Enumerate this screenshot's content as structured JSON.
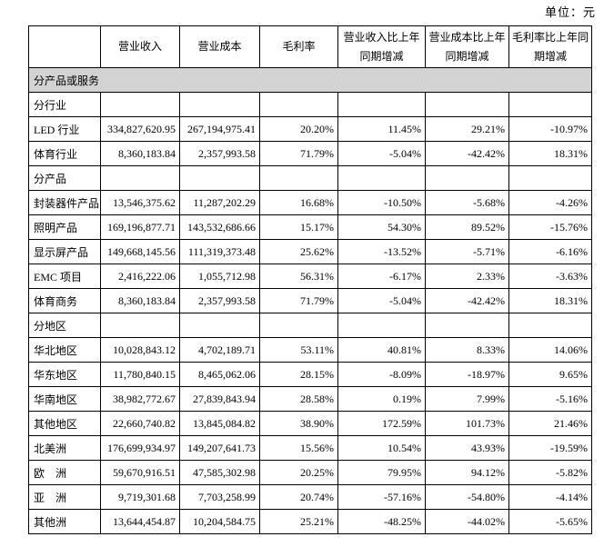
{
  "unit_label": "单位：元",
  "colors": {
    "section_row_bg": "#d3d3d3",
    "border": "#000000",
    "text": "#000000"
  },
  "table": {
    "columns": [
      "",
      "营业收入",
      "营业成本",
      "毛利率",
      "营业收入比上年同期增减",
      "营业成本比上年同期增减",
      "毛利率比上年同期增减"
    ],
    "rows": [
      {
        "type": "section_full",
        "label": "分产品或服务"
      },
      {
        "type": "section",
        "label": "分行业",
        "values": [
          "",
          "",
          "",
          "",
          "",
          ""
        ]
      },
      {
        "type": "data",
        "label": "LED 行业",
        "values": [
          "334,827,620.95",
          "267,194,975.41",
          "20.20%",
          "11.45%",
          "29.21%",
          "-10.97%"
        ]
      },
      {
        "type": "data",
        "label": "体育行业",
        "values": [
          "8,360,183.84",
          "2,357,993.58",
          "71.79%",
          "-5.04%",
          "-42.42%",
          "18.31%"
        ]
      },
      {
        "type": "section",
        "label": "分产品",
        "values": [
          "",
          "",
          "",
          "",
          "",
          ""
        ]
      },
      {
        "type": "data",
        "label": "封装器件产品",
        "values": [
          "13,546,375.62",
          "11,287,202.29",
          "16.68%",
          "-10.50%",
          "-5.68%",
          "-4.26%"
        ]
      },
      {
        "type": "data",
        "label": "照明产品",
        "values": [
          "169,196,877.71",
          "143,532,686.66",
          "15.17%",
          "54.30%",
          "89.52%",
          "-15.76%"
        ]
      },
      {
        "type": "data",
        "label": "显示屏产品",
        "values": [
          "149,668,145.56",
          "111,319,373.48",
          "25.62%",
          "-13.52%",
          "-5.71%",
          "-6.16%"
        ]
      },
      {
        "type": "data",
        "label": "EMC 项目",
        "values": [
          "2,416,222.06",
          "1,055,712.98",
          "56.31%",
          "-6.17%",
          "2.33%",
          "-3.63%"
        ]
      },
      {
        "type": "data",
        "label": "体育商务",
        "values": [
          "8,360,183.84",
          "2,357,993.58",
          "71.79%",
          "-5.04%",
          "-42.42%",
          "18.31%"
        ]
      },
      {
        "type": "section",
        "label": "分地区",
        "values": [
          "",
          "",
          "",
          "",
          "",
          ""
        ]
      },
      {
        "type": "data",
        "label": "华北地区",
        "values": [
          "10,028,843.12",
          "4,702,189.71",
          "53.11%",
          "40.81%",
          "8.33%",
          "14.06%"
        ]
      },
      {
        "type": "data",
        "label": "华东地区",
        "values": [
          "11,780,840.15",
          "8,465,062.06",
          "28.15%",
          "-8.09%",
          "-18.97%",
          "9.65%"
        ]
      },
      {
        "type": "data",
        "label": "华南地区",
        "values": [
          "38,982,772.67",
          "27,839,843.94",
          "28.58%",
          "0.19%",
          "7.99%",
          "-5.16%"
        ]
      },
      {
        "type": "data",
        "label": "其他地区",
        "values": [
          "22,660,740.82",
          "13,845,084.82",
          "38.90%",
          "172.59%",
          "101.73%",
          "21.46%"
        ]
      },
      {
        "type": "data",
        "label": "北美洲",
        "values": [
          "176,699,934.97",
          "149,207,641.73",
          "15.56%",
          "10.54%",
          "43.93%",
          "-19.59%"
        ]
      },
      {
        "type": "data",
        "label": "欧　洲",
        "values": [
          "59,670,916.51",
          "47,585,302.98",
          "20.25%",
          "79.95%",
          "94.12%",
          "-5.82%"
        ]
      },
      {
        "type": "data",
        "label": "亚　洲",
        "values": [
          "9,719,301.68",
          "7,703,258.99",
          "20.74%",
          "-57.16%",
          "-54.80%",
          "-4.14%"
        ]
      },
      {
        "type": "data",
        "label": "其他洲",
        "values": [
          "13,644,454.87",
          "10,204,584.75",
          "25.21%",
          "-48.25%",
          "-44.02%",
          "-5.65%"
        ]
      }
    ]
  }
}
